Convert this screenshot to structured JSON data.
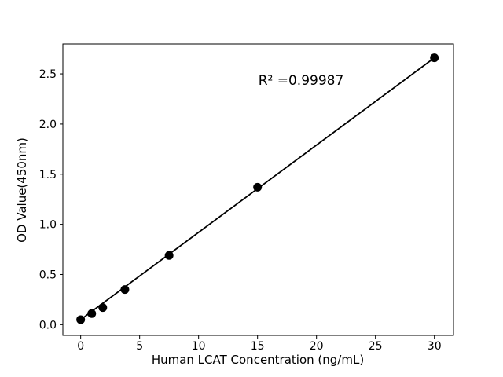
{
  "figure": {
    "background_color": "#ffffff",
    "text_color": "#000000"
  },
  "chart_data": {
    "type": "scatter",
    "title": "",
    "xlabel": "Human LCAT Concentration (ng/mL)",
    "ylabel": "OD Value(450nm)",
    "r_squared_label": "R² =0.99987",
    "points": [
      {
        "x": 0,
        "y": 0.05
      },
      {
        "x": 0.938,
        "y": 0.11
      },
      {
        "x": 1.875,
        "y": 0.17
      },
      {
        "x": 3.75,
        "y": 0.35
      },
      {
        "x": 7.5,
        "y": 0.69
      },
      {
        "x": 15,
        "y": 1.37
      },
      {
        "x": 30,
        "y": 2.66
      }
    ],
    "trendline": {
      "x1": 0,
      "y1": 0.05,
      "x2": 30,
      "y2": 2.66
    },
    "xticks": [
      {
        "value": 0,
        "label": "0"
      },
      {
        "value": 5,
        "label": "5"
      },
      {
        "value": 10,
        "label": "10"
      },
      {
        "value": 15,
        "label": "15"
      },
      {
        "value": 20,
        "label": "20"
      },
      {
        "value": 25,
        "label": "25"
      },
      {
        "value": 30,
        "label": "30"
      }
    ],
    "yticks": [
      {
        "value": 0.0,
        "label": "0.0"
      },
      {
        "value": 0.5,
        "label": "0.5"
      },
      {
        "value": 1.0,
        "label": "1.0"
      },
      {
        "value": 1.5,
        "label": "1.5"
      },
      {
        "value": 2.0,
        "label": "2.0"
      },
      {
        "value": 2.5,
        "label": "2.5"
      }
    ],
    "xlim": [
      -1.51,
      31.62
    ],
    "ylim": [
      -0.107,
      2.798
    ],
    "grid": false,
    "legend": "none",
    "marker_color": "#000000",
    "line_color": "#000000",
    "frame_color": "#000000"
  }
}
